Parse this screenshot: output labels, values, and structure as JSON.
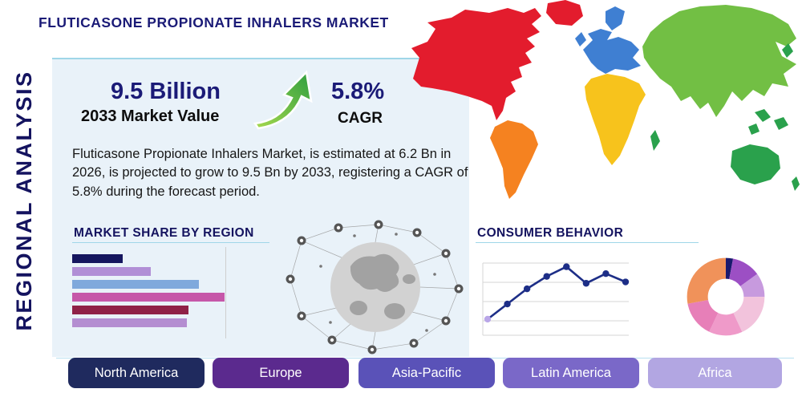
{
  "page": {
    "title": "FLUTICASONE PROPIONATE INHALERS MARKET",
    "side_label": "REGIONAL ANALYSIS",
    "accent_color": "#1b1b77",
    "panel_color": "#e9f2f9"
  },
  "stats": {
    "market_value": "9.5 Billion",
    "market_value_label": "2033 Market Value",
    "cagr_value": "5.8%",
    "cagr_label": "CAGR",
    "description": "Fluticasone Propionate Inhalers Market, is estimated at 6.2 Bn in 2026, is projected to grow to 9.5 Bn by 2033, registering a CAGR of 5.8% during the forecast period.",
    "arrow_gradient": {
      "start": "#2f9e3f",
      "end": "#a6d94e"
    }
  },
  "regions": [
    {
      "label": "North America",
      "color": "#1f2a5e"
    },
    {
      "label": "Europe",
      "color": "#5b2a8e"
    },
    {
      "label": "Asia-Pacific",
      "color": "#5a52b8"
    },
    {
      "label": "Latin America",
      "color": "#7a68c8"
    },
    {
      "label": "Africa",
      "color": "#b2a6e2"
    }
  ],
  "map": {
    "continents": {
      "greenland": "#e31c2d",
      "north_america": "#e31c2d",
      "south_america": "#f58220",
      "europe": "#3f7fd2",
      "africa": "#f7c31c",
      "asia": "#72bf44",
      "australia": "#2aa14c",
      "islands": "#2aa14c"
    }
  },
  "chart_data": [
    {
      "type": "bar",
      "title": "MARKET SHARE BY REGION",
      "orientation": "horizontal",
      "values": [
        25,
        39,
        63,
        76,
        58,
        57
      ],
      "value_note": "relative bar lengths, 0-100 scale; bars unlabeled in source",
      "colors": [
        "#15165f",
        "#b18fd6",
        "#7fa9dc",
        "#c657a9",
        "#8f2147",
        "#b48ed1"
      ],
      "gridline": true
    },
    {
      "type": "line",
      "title": "CONSUMER BEHAVIOR",
      "values": [
        14,
        36,
        58,
        76,
        90,
        66,
        80,
        68
      ],
      "value_note": "relative trend, 0-100 scale; axes unlabeled in source",
      "color": "#1d2e87",
      "first_marker_color": "#b9a6e8",
      "grid": true
    },
    {
      "type": "pie",
      "title": "Regional share donut",
      "values": [
        3,
        12,
        10,
        18,
        14,
        15,
        28
      ],
      "value_note": "estimated slice percentages, clockwise from top; unlabeled in source",
      "colors": [
        "#1a1a6e",
        "#9c4fc4",
        "#c79ade",
        "#f2c3dc",
        "#ef9ac9",
        "#e77fb8",
        "#f0925a"
      ]
    }
  ]
}
